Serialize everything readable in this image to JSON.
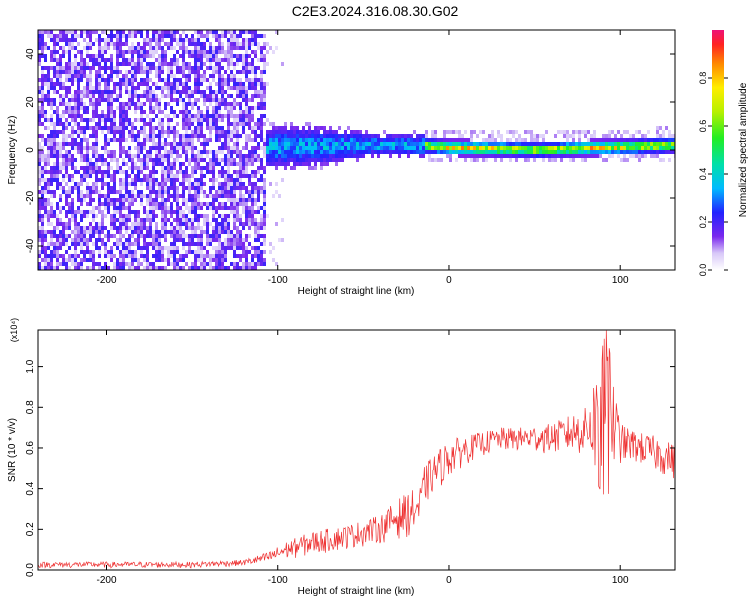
{
  "title": "C2E3.2024.316.08.30.G02",
  "chart_data": [
    {
      "type": "heatmap",
      "xlabel": "Height of straight line (km)",
      "ylabel": "Frequency (Hz)",
      "xlim": [
        -240,
        132
      ],
      "ylim": [
        -50,
        50
      ],
      "xticks": [
        -200,
        -100,
        0,
        100
      ],
      "yticks": [
        -40,
        -20,
        0,
        20,
        40
      ],
      "colorbar": {
        "label": "Normalized spectral amplitude",
        "range": [
          0,
          1
        ],
        "ticks": [
          "0.0",
          "0.2",
          "0.4",
          "0.6",
          "0.8"
        ],
        "tick_values": [
          0,
          0.2,
          0.4,
          0.6,
          0.8
        ]
      },
      "regions": [
        {
          "x": [
            -240,
            -107
          ],
          "freq_spread": [
            -50,
            50
          ],
          "amplitude": [
            0.05,
            0.22
          ]
        },
        {
          "x": [
            -107,
            -95
          ],
          "freq_spread": [
            -50,
            50
          ],
          "amplitude": [
            0.0,
            0.06
          ]
        },
        {
          "x": [
            -107,
            -15
          ],
          "freq_spread": [
            -10,
            10
          ],
          "amplitude": [
            0.12,
            0.35
          ]
        },
        {
          "x": [
            -15,
            132
          ],
          "freq_spread": [
            -3,
            3
          ],
          "amplitude": [
            0.2,
            0.75
          ]
        }
      ],
      "center_line": {
        "x": [
          -107,
          -50,
          -20,
          0,
          50,
          90,
          132
        ],
        "freq": [
          1,
          2,
          2,
          1,
          0,
          1,
          2
        ]
      }
    },
    {
      "type": "line",
      "xlabel": "Height of straight line (km)",
      "ylabel": "SNR (10 * v/v)",
      "scale_note": "(x10⁴)",
      "xlim": [
        -240,
        132
      ],
      "ylim": [
        0,
        1.18
      ],
      "xticks": [
        -200,
        -100,
        0,
        100
      ],
      "yticks": [
        "0.0",
        "0.2",
        "0.4",
        "0.6",
        "0.8",
        "1.0"
      ],
      "ytick_values": [
        0,
        0.2,
        0.4,
        0.6,
        0.8,
        1.0
      ],
      "color": "#ee3333",
      "envelope": {
        "x": [
          -240,
          -150,
          -120,
          -105,
          -95,
          -80,
          -60,
          -40,
          -30,
          -20,
          -16,
          -15,
          -10,
          0,
          10,
          20,
          30,
          40,
          60,
          80,
          88,
          92,
          100,
          110,
          120,
          132
        ],
        "low": [
          0.01,
          0.01,
          0.02,
          0.03,
          0.05,
          0.07,
          0.1,
          0.13,
          0.15,
          0.17,
          0.18,
          0.3,
          0.36,
          0.45,
          0.52,
          0.56,
          0.58,
          0.58,
          0.57,
          0.56,
          0.4,
          0.35,
          0.52,
          0.52,
          0.48,
          0.44
        ],
        "high": [
          0.04,
          0.04,
          0.05,
          0.09,
          0.14,
          0.19,
          0.22,
          0.27,
          0.35,
          0.4,
          0.42,
          0.5,
          0.56,
          0.64,
          0.66,
          0.68,
          0.7,
          0.7,
          0.72,
          0.8,
          1.05,
          1.18,
          0.72,
          0.68,
          0.66,
          0.62
        ]
      }
    }
  ]
}
